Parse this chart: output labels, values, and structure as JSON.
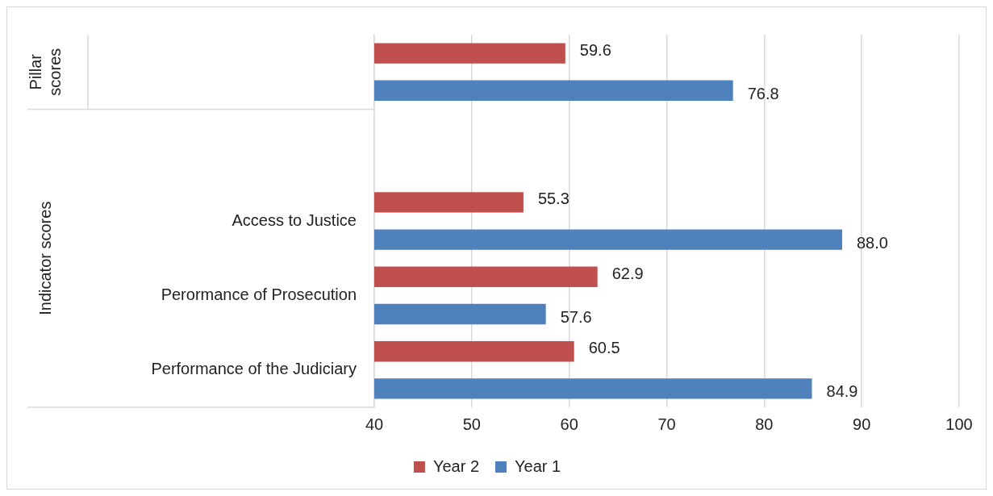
{
  "chart_data": {
    "type": "bar",
    "orientation": "horizontal",
    "categories": [
      null,
      null,
      "Access to Justice",
      "Perormance of Prosecution",
      "Performance of the Judiciary"
    ],
    "series": [
      {
        "name": "Year 2",
        "color": "#c0504d",
        "values": [
          59.6,
          null,
          55.3,
          62.9,
          60.5
        ],
        "value_labels": [
          "59.6",
          null,
          "55.3",
          "62.9",
          "60.5"
        ]
      },
      {
        "name": "Year 1",
        "color": "#4f81bd",
        "values": [
          76.8,
          null,
          88.0,
          57.6,
          84.9
        ],
        "value_labels": [
          "76.8",
          null,
          "88.0",
          "57.6",
          "84.9"
        ]
      }
    ],
    "xlim": [
      40,
      100
    ],
    "xticks": [
      40,
      50,
      60,
      70,
      80,
      90,
      100
    ],
    "grid": "x",
    "legend": "bottom",
    "annotations": [
      "Pillar scores",
      "Indicator scores"
    ]
  }
}
